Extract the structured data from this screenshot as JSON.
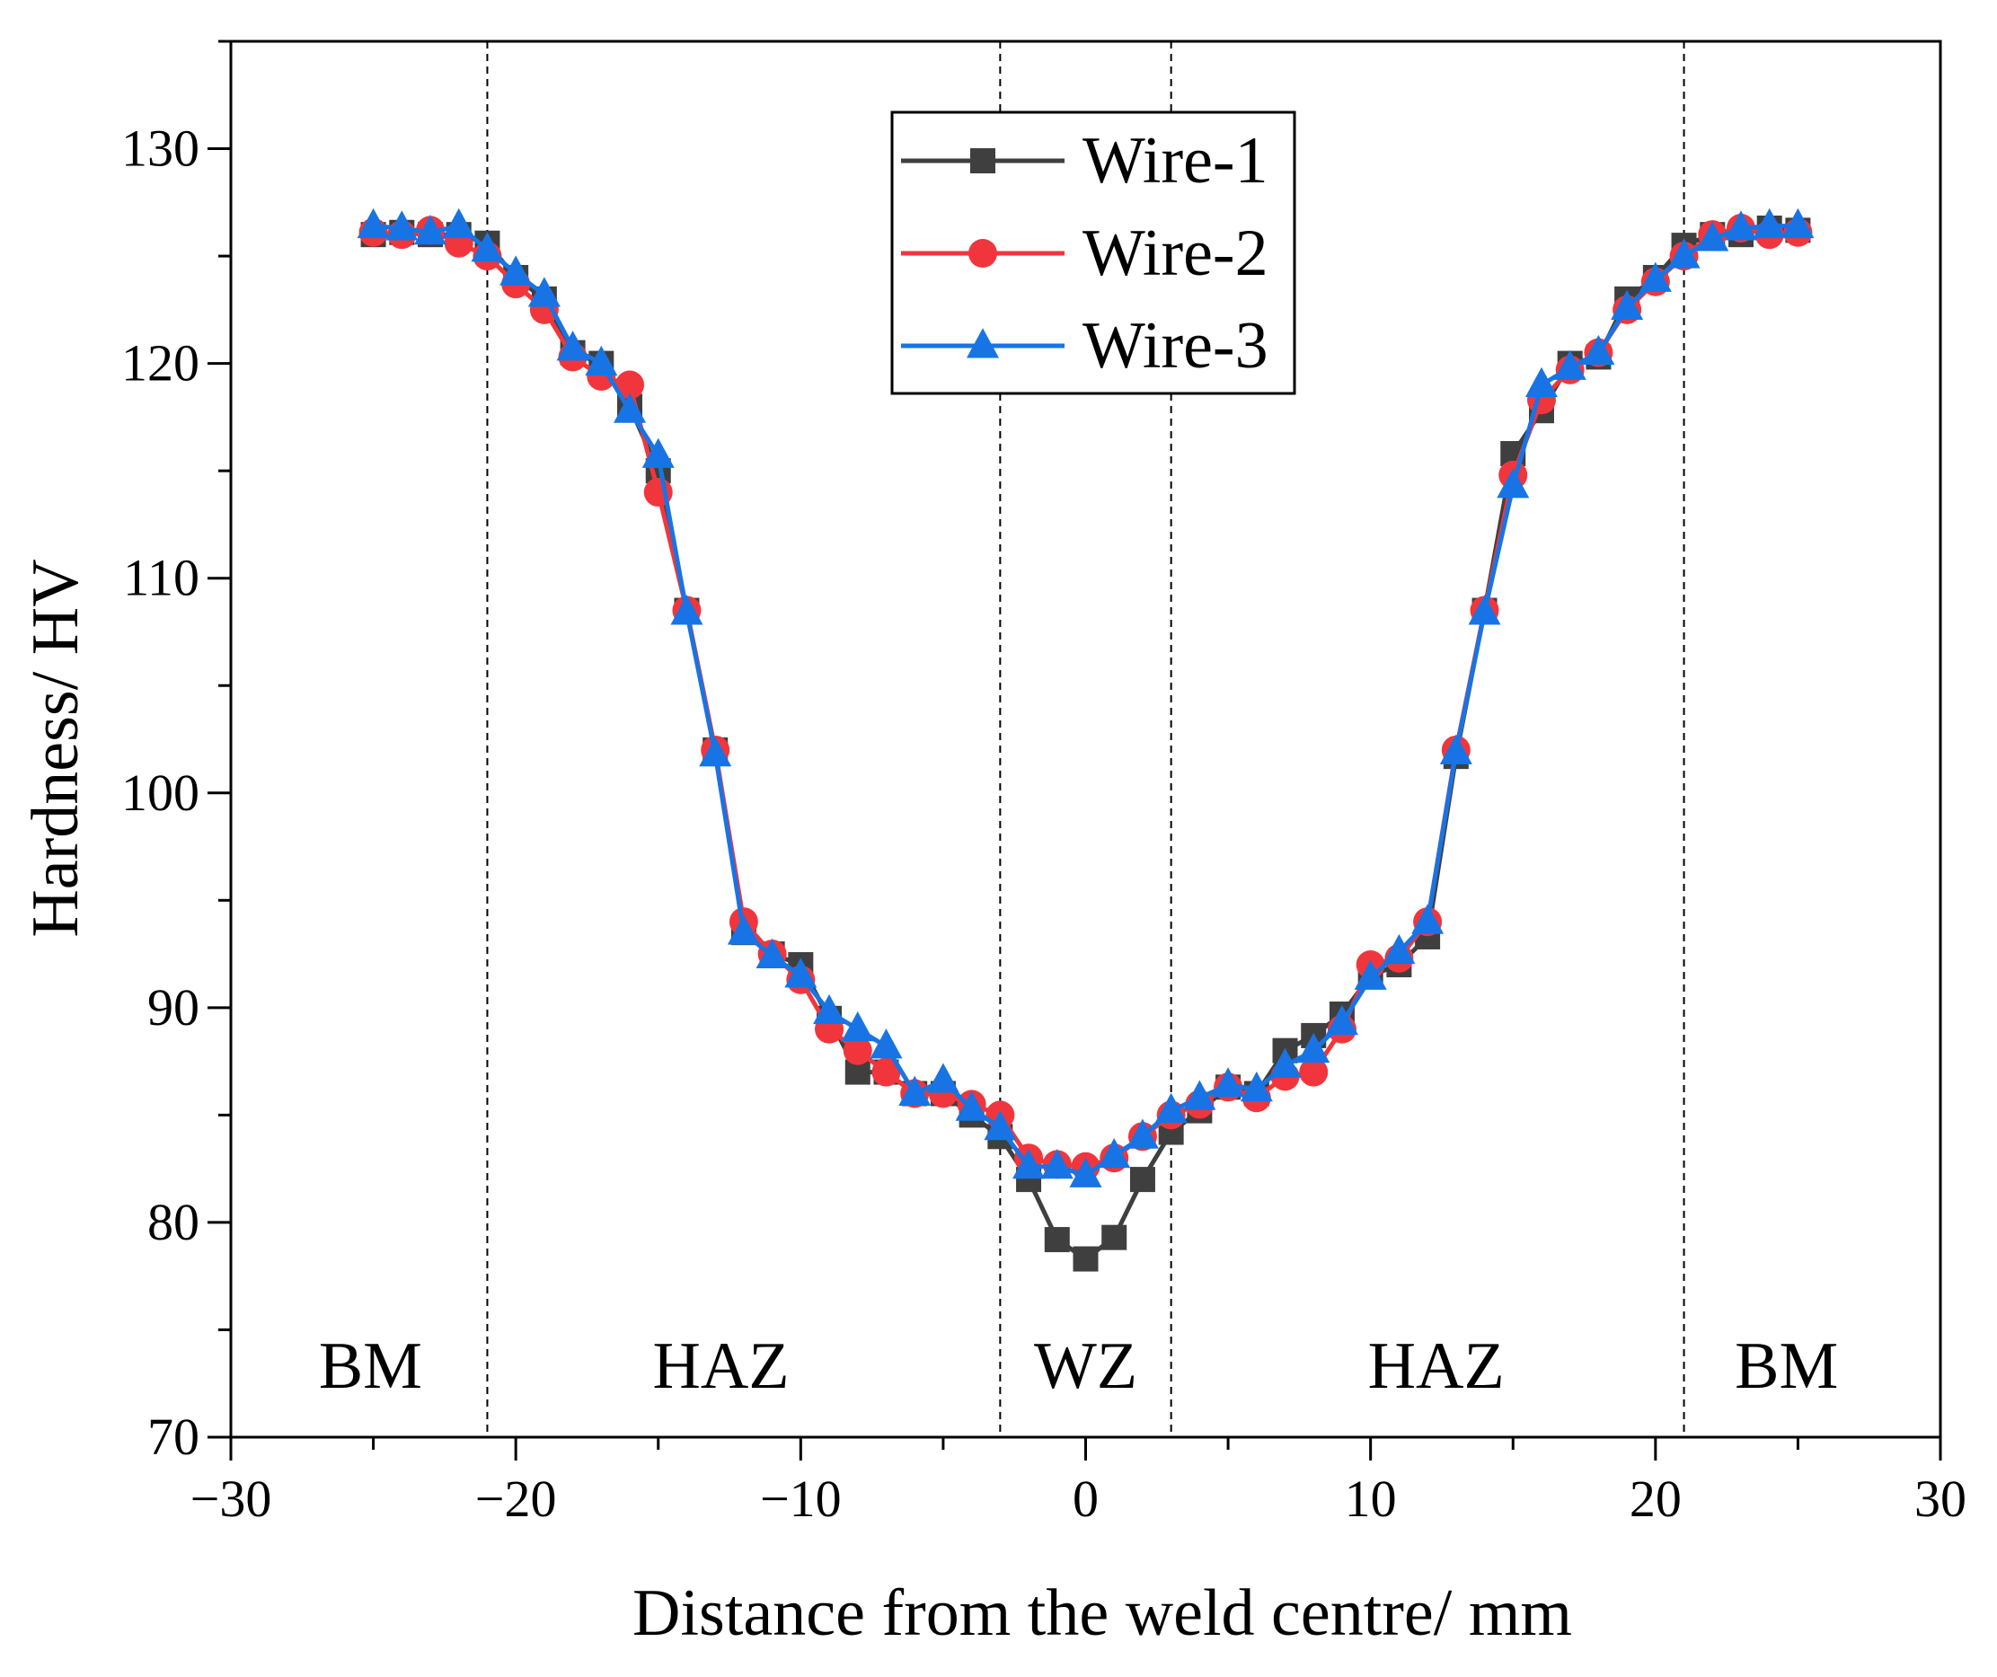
{
  "chart_data": {
    "type": "line",
    "xlabel": "Distance from the weld centre/ mm",
    "ylabel": "Hardness/ HV",
    "xlim": [
      -30,
      30
    ],
    "ylim": [
      70,
      135
    ],
    "xticks": [
      -30,
      -20,
      -10,
      0,
      10,
      20,
      30
    ],
    "yticks": [
      70,
      80,
      90,
      100,
      110,
      120,
      130
    ],
    "x_tick_labels": [
      "−30",
      "−20",
      "−10",
      "0",
      "10",
      "20",
      "30"
    ],
    "y_tick_labels": [
      "70",
      "80",
      "90",
      "100",
      "110",
      "120",
      "130"
    ],
    "grid": false,
    "legend_position": "top-center",
    "boundaries": [
      -21,
      -3,
      3,
      21
    ],
    "zones": [
      {
        "label": "BM",
        "x": -25.1
      },
      {
        "label": "HAZ",
        "x": -12.8
      },
      {
        "label": "WZ",
        "x": 0
      },
      {
        "label": "HAZ",
        "x": 12.3
      },
      {
        "label": "BM",
        "x": 24.6
      }
    ],
    "x": [
      -25,
      -24,
      -23,
      -22,
      -21,
      -20,
      -19,
      -18,
      -17,
      -16,
      -15,
      -14,
      -13,
      -12,
      -11,
      -10,
      -9,
      -8,
      -7,
      -6,
      -5,
      -4,
      -3,
      -2,
      -1,
      0,
      1,
      2,
      3,
      4,
      5,
      6,
      7,
      8,
      9,
      10,
      11,
      12,
      13,
      14,
      15,
      16,
      17,
      18,
      19,
      20,
      21,
      22,
      23,
      24,
      25
    ],
    "series": [
      {
        "name": "Wire-1",
        "color": "#3f3f3f",
        "marker": "square",
        "values": [
          126.0,
          126.1,
          126.0,
          126.0,
          125.6,
          124.0,
          123.0,
          120.5,
          120.0,
          118.0,
          115.0,
          108.5,
          102.0,
          93.5,
          92.5,
          92.0,
          89.5,
          87.0,
          87.0,
          86.0,
          86.0,
          85.0,
          84.0,
          82.0,
          79.2,
          78.3,
          79.3,
          82.0,
          84.2,
          85.2,
          86.3,
          86.0,
          88.0,
          88.7,
          89.7,
          91.5,
          92.0,
          93.3,
          101.7,
          108.5,
          115.8,
          117.8,
          120.0,
          120.3,
          123.0,
          124.0,
          125.5,
          126.0,
          126.0,
          126.3,
          126.2
        ]
      },
      {
        "name": "Wire-2",
        "color": "#f0363c",
        "marker": "circle",
        "values": [
          126.1,
          126.0,
          126.2,
          125.6,
          125.0,
          123.7,
          122.5,
          120.3,
          119.4,
          119.0,
          114.0,
          108.5,
          102.0,
          94.0,
          92.5,
          91.3,
          89.0,
          88.0,
          87.0,
          86.0,
          86.0,
          85.5,
          85.0,
          83.0,
          82.7,
          82.6,
          83.0,
          84.0,
          85.0,
          85.5,
          86.3,
          85.8,
          86.8,
          87.0,
          89.0,
          92.0,
          92.3,
          94.0,
          102.0,
          108.5,
          114.8,
          118.3,
          119.7,
          120.5,
          122.5,
          123.8,
          125.0,
          126.0,
          126.3,
          126.0,
          126.1
        ]
      },
      {
        "name": "Wire-3",
        "color": "#1874e4",
        "marker": "triangle",
        "values": [
          126.4,
          126.3,
          126.1,
          126.4,
          125.3,
          124.2,
          123.2,
          120.7,
          120.0,
          117.8,
          115.7,
          108.4,
          101.8,
          93.5,
          92.4,
          91.5,
          89.8,
          89.0,
          88.2,
          86.0,
          86.6,
          85.3,
          84.4,
          82.6,
          82.6,
          82.2,
          83.1,
          84.0,
          85.2,
          85.8,
          86.4,
          86.2,
          87.3,
          88.0,
          89.3,
          91.4,
          92.6,
          94.0,
          101.9,
          108.4,
          114.3,
          119.0,
          119.8,
          120.5,
          122.6,
          123.9,
          125.0,
          125.8,
          126.3,
          126.4,
          126.4
        ]
      }
    ]
  }
}
